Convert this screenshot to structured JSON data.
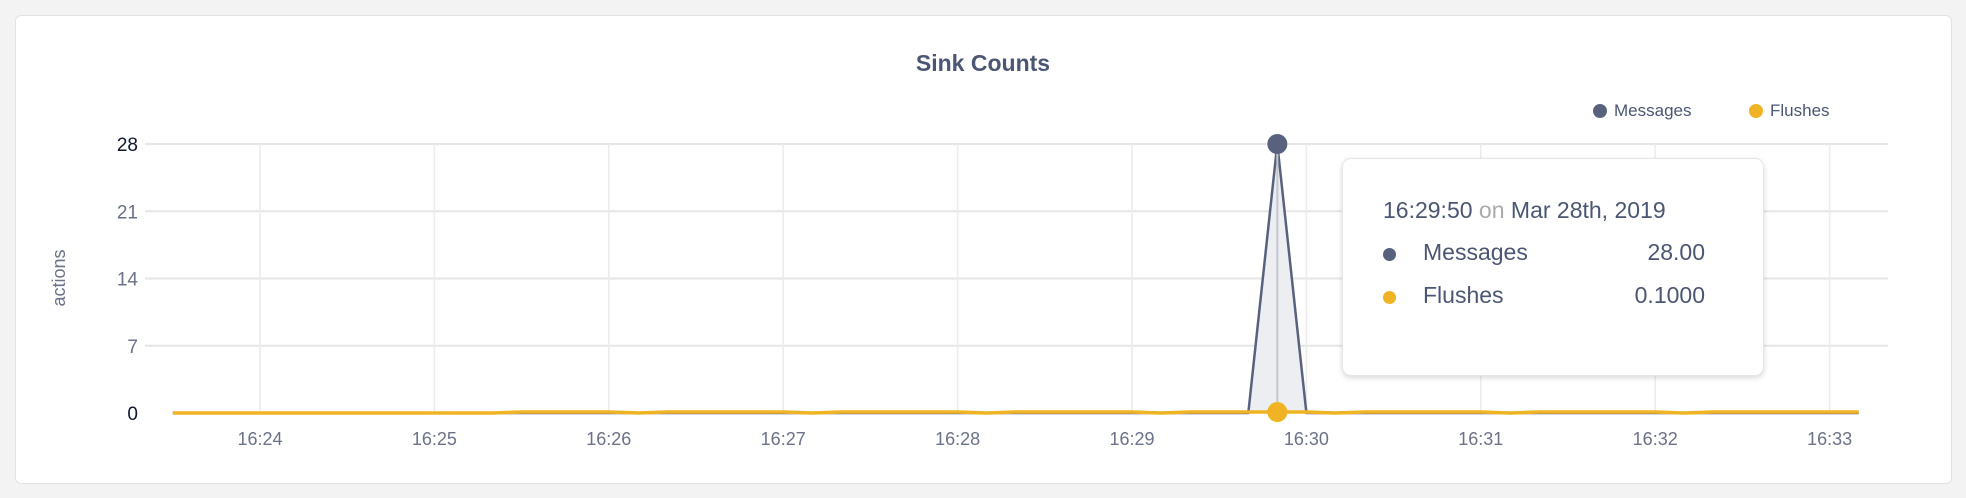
{
  "chart_data": {
    "type": "area",
    "title": "Sink Counts",
    "ylabel": "actions",
    "xlabel": "",
    "ylim": [
      0,
      28
    ],
    "y_ticks": [
      "0",
      "7",
      "14",
      "21",
      "28"
    ],
    "x_ticks": [
      "16:24",
      "16:25",
      "16:26",
      "16:27",
      "16:28",
      "16:29",
      "16:30",
      "16:31",
      "16:32",
      "16:33"
    ],
    "grid": true,
    "legend_position": "top-right",
    "x": [
      "16:23:30",
      "16:23:40",
      "16:23:50",
      "16:24:00",
      "16:24:10",
      "16:24:20",
      "16:24:30",
      "16:24:40",
      "16:24:50",
      "16:25:00",
      "16:25:10",
      "16:25:20",
      "16:25:30",
      "16:25:40",
      "16:25:50",
      "16:26:00",
      "16:26:10",
      "16:26:20",
      "16:26:30",
      "16:26:40",
      "16:26:50",
      "16:27:00",
      "16:27:10",
      "16:27:20",
      "16:27:30",
      "16:27:40",
      "16:27:50",
      "16:28:00",
      "16:28:10",
      "16:28:20",
      "16:28:30",
      "16:28:40",
      "16:28:50",
      "16:29:00",
      "16:29:10",
      "16:29:20",
      "16:29:30",
      "16:29:40",
      "16:29:50",
      "16:30:00",
      "16:30:10",
      "16:30:20",
      "16:30:30",
      "16:30:40",
      "16:30:50",
      "16:31:00",
      "16:31:10",
      "16:31:20",
      "16:31:30",
      "16:31:40",
      "16:31:50",
      "16:32:00",
      "16:32:10",
      "16:32:20",
      "16:32:30",
      "16:32:40",
      "16:32:50",
      "16:33:00",
      "16:33:10"
    ],
    "series": [
      {
        "name": "Messages",
        "color": "#58627f",
        "values": [
          0,
          0,
          0,
          0,
          0,
          0,
          0,
          0,
          0,
          0,
          0,
          0,
          0,
          0,
          0,
          0,
          0,
          0,
          0,
          0,
          0,
          0,
          0,
          0,
          0,
          0,
          0,
          0,
          0,
          0,
          0,
          0,
          0,
          0,
          0,
          0,
          0,
          0,
          28,
          0,
          0,
          0,
          0,
          0,
          0,
          0,
          0,
          0,
          0,
          0,
          0,
          0,
          0,
          0,
          0,
          0,
          0,
          0,
          0
        ]
      },
      {
        "name": "Flushes",
        "color": "#f0b323",
        "values": [
          0,
          0,
          0,
          0,
          0,
          0,
          0,
          0,
          0,
          0,
          0,
          0,
          0.1,
          0.1,
          0.1,
          0.1,
          0,
          0.1,
          0.1,
          0.1,
          0.1,
          0.1,
          0,
          0.1,
          0.1,
          0.1,
          0.1,
          0.1,
          0,
          0.1,
          0.1,
          0.1,
          0.1,
          0.1,
          0,
          0.1,
          0.1,
          0.1,
          0.1,
          0.1,
          0,
          0.1,
          0.1,
          0.1,
          0.1,
          0.1,
          0,
          0.1,
          0.1,
          0.1,
          0.1,
          0.1,
          0,
          0.1,
          0.1,
          0.1,
          0.1,
          0.1,
          0.1
        ]
      }
    ]
  },
  "tooltip": {
    "time": "16:29:50",
    "on": "on",
    "date": "Mar 28th, 2019",
    "rows": [
      {
        "label": "Messages",
        "value": "28.00",
        "color": "#58627f"
      },
      {
        "label": "Flushes",
        "value": "0.1000",
        "color": "#f0b323"
      }
    ]
  }
}
